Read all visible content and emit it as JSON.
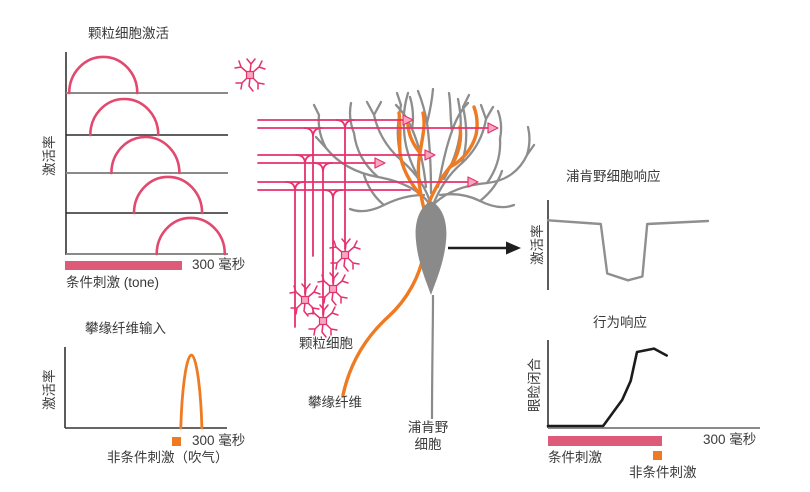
{
  "figure": {
    "background": "#ffffff",
    "colors": {
      "curve_pink": "#e1496f",
      "stimulus_bar_pink": "#dd5a78",
      "fiber_magenta": "#e6316e",
      "synapse_triangle_fill": "#f5a8bc",
      "orange": "#ee7b23",
      "dendrite_gray": "#8d8d8d",
      "soma_gray": "#8a8a8a",
      "trace_gray": "#8f8f8f",
      "trace_black": "#1c1c1c",
      "text": "#3a3a3a"
    }
  },
  "panels": {
    "granule": {
      "title": "颗粒细胞激活",
      "ylabel": "激活率",
      "time_label": "300 毫秒",
      "stim_label": "条件刺激 (tone)"
    },
    "climbing": {
      "title": "攀缘纤维输入",
      "ylabel": "激活率",
      "time_label": "300 毫秒",
      "stim_label": "非条件刺激（吹气）"
    },
    "purkinje": {
      "title": "浦肯野细胞响应",
      "ylabel": "激活率"
    },
    "behavior": {
      "title": "行为响应",
      "ylabel": "眼睑闭合",
      "time_label": "300 毫秒",
      "cs_label": "条件刺激",
      "us_label": "非条件刺激"
    }
  },
  "neuron": {
    "granule_label": "颗粒细胞",
    "climbing_label": "攀缘纤维",
    "purkinje_label": "浦肯野\n细胞"
  },
  "chart_data": [
    {
      "id": "granule_activation",
      "type": "line",
      "title": "颗粒细胞激活",
      "ylabel": "激活率",
      "xlabel": "条件刺激 (tone)",
      "xlim_ms": [
        0,
        300
      ],
      "x_span_label": "300 毫秒",
      "rows": [
        {
          "cell": 1,
          "peak_frac": 0.23
        },
        {
          "cell": 2,
          "peak_frac": 0.36
        },
        {
          "cell": 3,
          "peak_frac": 0.49
        },
        {
          "cell": 4,
          "peak_frac": 0.63
        },
        {
          "cell": 5,
          "peak_frac": 0.77
        }
      ],
      "bump_width_frac": 0.42,
      "cs_bar_frac": [
        0,
        0.72
      ]
    },
    {
      "id": "climbing_fiber_input",
      "type": "line",
      "title": "攀缘纤维输入",
      "ylabel": "激活率",
      "xlabel": "非条件刺激（吹气）",
      "xlim_ms": [
        0,
        300
      ],
      "x_span_label": "300 毫秒",
      "spike_center_frac": 0.78,
      "spike_width_frac": 0.13,
      "us_marker_frac": 0.69
    },
    {
      "id": "purkinje_response",
      "type": "line",
      "title": "浦肯野细胞响应",
      "ylabel": "激活率",
      "points_frac": [
        [
          0,
          0.93
        ],
        [
          0.33,
          0.88
        ],
        [
          0.37,
          0.22
        ],
        [
          0.5,
          0.13
        ],
        [
          0.59,
          0.18
        ],
        [
          0.62,
          0.88
        ],
        [
          1,
          0.92
        ]
      ]
    },
    {
      "id": "behavior_response",
      "type": "line",
      "title": "行为响应",
      "ylabel": "眼睑闭合",
      "x_span_label": "300 毫秒",
      "points_frac": [
        [
          0,
          0
        ],
        [
          0.26,
          0
        ],
        [
          0.35,
          0.3
        ],
        [
          0.39,
          0.52
        ],
        [
          0.42,
          0.85
        ],
        [
          0.5,
          0.89
        ],
        [
          0.56,
          0.81
        ]
      ],
      "cs_bar_frac": [
        0,
        0.54
      ],
      "us_marker_frac": 0.51
    }
  ]
}
